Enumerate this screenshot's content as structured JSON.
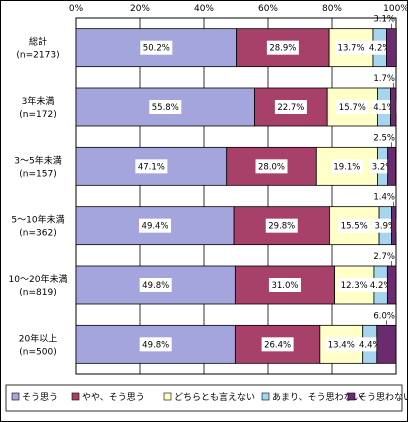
{
  "chart_data": {
    "type": "bar",
    "orientation": "horizontal",
    "stacked": true,
    "percent": true,
    "xlim": [
      0,
      100
    ],
    "xticks": [
      "0%",
      "20%",
      "40%",
      "60%",
      "80%",
      "100%"
    ],
    "grid": true,
    "legend_position": "bottom",
    "categories": [
      {
        "line1": "総計",
        "line2": "(n=2173)"
      },
      {
        "line1": "3年未満",
        "line2": "(n=172)"
      },
      {
        "line1": "3～5年未満",
        "line2": "(n=157)"
      },
      {
        "line1": "5～10年未満",
        "line2": "(n=362)"
      },
      {
        "line1": "10～20年未満",
        "line2": "(n=819)"
      },
      {
        "line1": "20年以上",
        "line2": "(n=500)"
      }
    ],
    "series": [
      {
        "name": "そう思う",
        "color": "#A5A5DD",
        "values": [
          50.2,
          55.8,
          47.1,
          49.4,
          49.8,
          49.8
        ],
        "labels": [
          "50.2%",
          "55.8%",
          "47.1%",
          "49.4%",
          "49.8%",
          "49.8%"
        ]
      },
      {
        "name": "やや、そう思う",
        "color": "#A8416A",
        "values": [
          28.9,
          22.7,
          28.0,
          29.8,
          31.0,
          26.4
        ],
        "labels": [
          "28.9%",
          "22.7%",
          "28.0%",
          "29.8%",
          "31.0%",
          "26.4%"
        ]
      },
      {
        "name": "どちらとも言えない",
        "color": "#FFFFC8",
        "values": [
          13.7,
          15.7,
          19.1,
          15.5,
          12.3,
          13.4
        ],
        "labels": [
          "13.7%",
          "15.7%",
          "19.1%",
          "15.5%",
          "12.3%",
          "13.4%"
        ]
      },
      {
        "name": "あまり、そう思わない",
        "color": "#A6D6EE",
        "values": [
          4.2,
          4.1,
          3.2,
          3.9,
          4.2,
          4.4
        ],
        "labels": [
          "4.2%",
          "4.1%",
          "3.2%",
          "3.9%",
          "4.2%",
          "4.4%"
        ]
      },
      {
        "name": "そう思わない",
        "color": "#6A2C6E",
        "values": [
          3.1,
          1.7,
          2.5,
          1.4,
          2.7,
          6.0
        ],
        "labels": [
          "3.1%",
          "1.7%",
          "2.5%",
          "1.4%",
          "2.7%",
          "6.0%"
        ]
      }
    ]
  }
}
